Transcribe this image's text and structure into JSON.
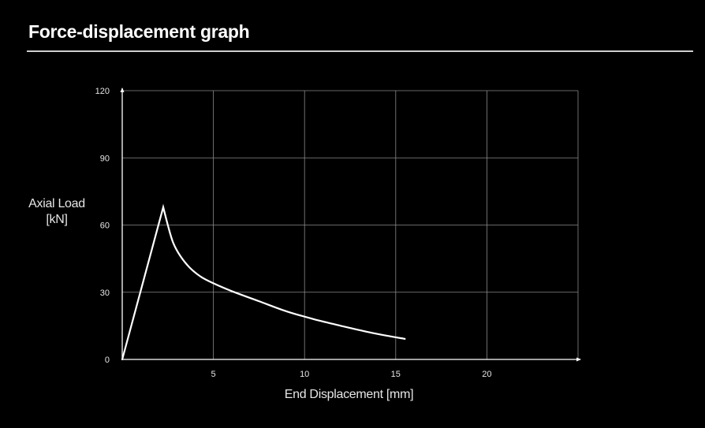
{
  "page": {
    "title": "Force-displacement graph"
  },
  "chart_data": {
    "type": "line",
    "title": "Force-displacement graph",
    "xlabel": "End Displacement [mm]",
    "ylabel_lines": [
      "Axial Load",
      "[kN]"
    ],
    "xlim": [
      0,
      25
    ],
    "ylim": [
      0,
      120
    ],
    "x_ticks": [
      5,
      10,
      15,
      20
    ],
    "y_ticks": [
      0,
      30,
      60,
      90,
      120
    ],
    "grid": true,
    "colors": {
      "background": "#000000",
      "line": "#ffffff",
      "grid": "#8a8a8a",
      "text": "#e6e6e6"
    },
    "series": [
      {
        "x": [
          0,
          2.25,
          2.5,
          2.8,
          3.2,
          3.7,
          4.3,
          5.0,
          6.0,
          7.5,
          9.0,
          10.5,
          12.0,
          13.5,
          14.7,
          15.5
        ],
        "y": [
          0,
          68,
          60,
          52,
          46,
          41,
          37,
          34,
          30.5,
          26,
          21.5,
          18,
          15,
          12.2,
          10.3,
          9.2
        ]
      }
    ]
  }
}
